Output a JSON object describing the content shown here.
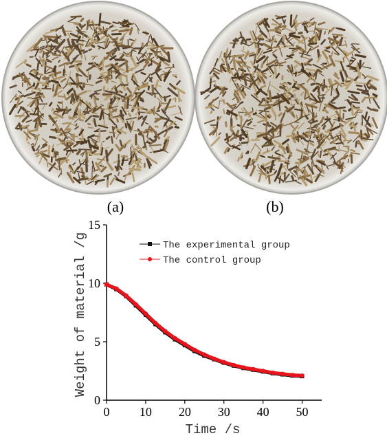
{
  "panel_labels": [
    "(a)",
    "(b)"
  ],
  "chart_data": {
    "type": "line",
    "xlabel": "Time /s",
    "ylabel": "Weight of material /g",
    "x": [
      0,
      2.5,
      5,
      7.5,
      10,
      12.5,
      15,
      17.5,
      20,
      22.5,
      25,
      27.5,
      30,
      32.5,
      35,
      37.5,
      40,
      42.5,
      45,
      47.5,
      50
    ],
    "series": [
      {
        "name": "The experimental group",
        "color": "#111111",
        "marker": "square",
        "values": [
          9.9,
          9.5,
          8.9,
          8.1,
          7.3,
          6.5,
          5.8,
          5.2,
          4.7,
          4.2,
          3.8,
          3.5,
          3.2,
          2.95,
          2.75,
          2.6,
          2.45,
          2.3,
          2.2,
          2.1,
          2.05
        ]
      },
      {
        "name": "The control group",
        "color": "#e8141c",
        "marker": "circle",
        "values": [
          9.9,
          9.55,
          8.95,
          8.2,
          7.4,
          6.6,
          5.9,
          5.3,
          4.8,
          4.3,
          3.9,
          3.55,
          3.25,
          3.0,
          2.8,
          2.65,
          2.5,
          2.35,
          2.25,
          2.15,
          2.1
        ]
      }
    ],
    "xlim": [
      0,
      55
    ],
    "xticks": [
      0,
      10,
      20,
      30,
      40,
      50
    ],
    "ylim": [
      0,
      15
    ],
    "yticks": [
      0,
      5,
      10,
      15
    ],
    "legend": "top-left"
  }
}
